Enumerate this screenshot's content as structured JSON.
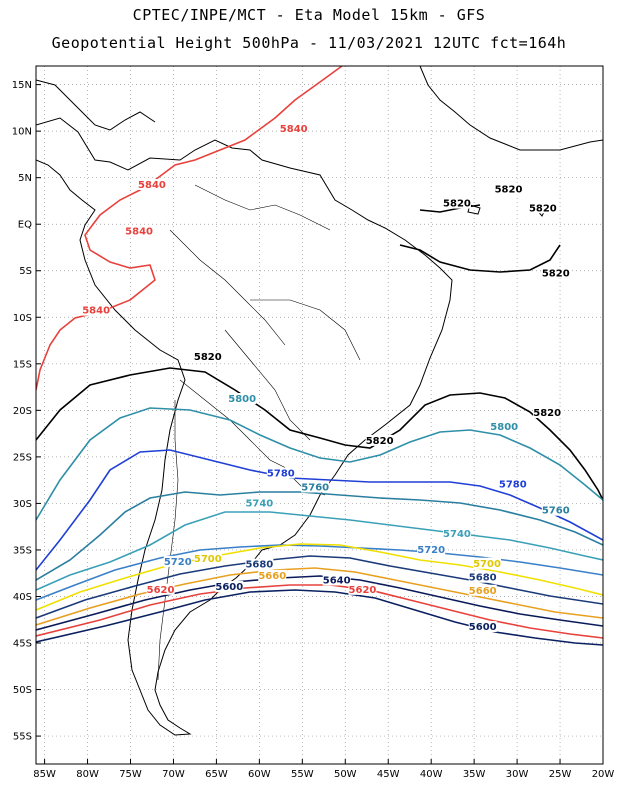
{
  "header": {
    "line1": "CPTEC/INPE/MCT -  Eta Model 15km - GFS",
    "line2": "Geopotential Height 500hPa - 11/03/2021 12UTC fct=164h"
  },
  "axes": {
    "lat_labels": [
      "15N",
      "10N",
      "5N",
      "EQ",
      "5S",
      "10S",
      "15S",
      "20S",
      "25S",
      "30S",
      "35S",
      "40S",
      "45S",
      "50S",
      "55S"
    ],
    "lat_values": [
      15,
      10,
      5,
      0,
      -5,
      -10,
      -15,
      -20,
      -25,
      -30,
      -35,
      -40,
      -45,
      -50,
      -55
    ],
    "lon_labels": [
      "85W",
      "80W",
      "75W",
      "70W",
      "65W",
      "60W",
      "55W",
      "50W",
      "45W",
      "40W",
      "35W",
      "30W",
      "25W",
      "20W"
    ],
    "lon_values": [
      -85,
      -80,
      -75,
      -70,
      -65,
      -60,
      -55,
      -50,
      -45,
      -40,
      -35,
      -30,
      -25,
      -20
    ],
    "lat_range": [
      -58,
      17
    ],
    "lon_range": [
      -86,
      -20
    ],
    "grid": "dotted"
  },
  "contours": [
    {
      "level": "5840",
      "color": "#e8413c"
    },
    {
      "level": "5820",
      "color": "#000000"
    },
    {
      "level": "5800",
      "color": "#2e8fa8"
    },
    {
      "level": "5780",
      "color": "#1f3fd6"
    },
    {
      "level": "5760",
      "color": "#2a7fa0"
    },
    {
      "level": "5740",
      "color": "#3aa0b8"
    },
    {
      "level": "5720",
      "color": "#3a80c8"
    },
    {
      "level": "5700",
      "color": "#f0e000"
    },
    {
      "level": "5680",
      "color": "#1a3a7a"
    },
    {
      "level": "5660",
      "color": "#e8a020"
    },
    {
      "level": "5640",
      "color": "#0a1a5a"
    },
    {
      "level": "5620",
      "color": "#e8413c"
    },
    {
      "level": "5600",
      "color": "#0a2060"
    }
  ],
  "contour_labels": [
    {
      "text": "5840",
      "color": "#e8413c",
      "lon": -56,
      "lat": 10
    },
    {
      "text": "5840",
      "color": "#e8413c",
      "lon": -72.5,
      "lat": 4
    },
    {
      "text": "5840",
      "color": "#e8413c",
      "lon": -74,
      "lat": -1
    },
    {
      "text": "5840",
      "color": "#e8413c",
      "lon": -79,
      "lat": -9.5
    },
    {
      "text": "5820",
      "color": "#000000",
      "lon": -37,
      "lat": 2
    },
    {
      "text": "5820",
      "color": "#000000",
      "lon": -31,
      "lat": 3.5
    },
    {
      "text": "5820",
      "color": "#000000",
      "lon": -27,
      "lat": 1.5
    },
    {
      "text": "5820",
      "color": "#000000",
      "lon": -25.5,
      "lat": -5.5
    },
    {
      "text": "5820",
      "color": "#000000",
      "lon": -66,
      "lat": -14.5
    },
    {
      "text": "5820",
      "color": "#000000",
      "lon": -46,
      "lat": -23.5
    },
    {
      "text": "5820",
      "color": "#000000",
      "lon": -26.5,
      "lat": -20.5
    },
    {
      "text": "5800",
      "color": "#2e8fa8",
      "lon": -62,
      "lat": -19
    },
    {
      "text": "5800",
      "color": "#2e8fa8",
      "lon": -31.5,
      "lat": -22
    },
    {
      "text": "5780",
      "color": "#1f3fd6",
      "lon": -57.5,
      "lat": -27
    },
    {
      "text": "5780",
      "color": "#1f3fd6",
      "lon": -30.5,
      "lat": -28.2
    },
    {
      "text": "5760",
      "color": "#2a7fa0",
      "lon": -53.5,
      "lat": -28.5
    },
    {
      "text": "5760",
      "color": "#2a7fa0",
      "lon": -25.5,
      "lat": -31
    },
    {
      "text": "5740",
      "color": "#3aa0b8",
      "lon": -60,
      "lat": -30.2
    },
    {
      "text": "5740",
      "color": "#3aa0b8",
      "lon": -37,
      "lat": -33.5
    },
    {
      "text": "5720",
      "color": "#3a80c8",
      "lon": -69.5,
      "lat": -36.5
    },
    {
      "text": "5720",
      "color": "#3a80c8",
      "lon": -40,
      "lat": -35.2
    },
    {
      "text": "5700",
      "color": "#e0c800",
      "lon": -66,
      "lat": -36.2
    },
    {
      "text": "5700",
      "color": "#e0c800",
      "lon": -33.5,
      "lat": -36.7
    },
    {
      "text": "5680",
      "color": "#1a3a7a",
      "lon": -60,
      "lat": -36.8
    },
    {
      "text": "5680",
      "color": "#1a3a7a",
      "lon": -34,
      "lat": -38.2
    },
    {
      "text": "5660",
      "color": "#e8a020",
      "lon": -58.5,
      "lat": -38
    },
    {
      "text": "5660",
      "color": "#e8a020",
      "lon": -34,
      "lat": -39.6
    },
    {
      "text": "5640",
      "color": "#0a1a5a",
      "lon": -51,
      "lat": -38.5
    },
    {
      "text": "5620",
      "color": "#e8413c",
      "lon": -71.5,
      "lat": -39.5
    },
    {
      "text": "5620",
      "color": "#e8413c",
      "lon": -48,
      "lat": -39.5
    },
    {
      "text": "5600",
      "color": "#0a2060",
      "lon": -63.5,
      "lat": -39.2
    },
    {
      "text": "5600",
      "color": "#0a2060",
      "lon": -34,
      "lat": -43.5
    }
  ]
}
